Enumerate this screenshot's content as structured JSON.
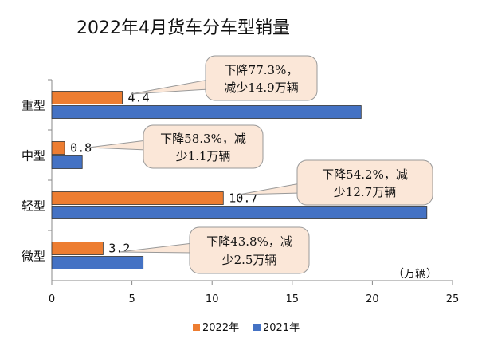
{
  "chart_data": {
    "type": "bar",
    "orientation": "horizontal",
    "title": "2022年4月货车分车型销量",
    "unit_label": "（万辆）",
    "categories": [
      "重型",
      "中型",
      "轻型",
      "微型"
    ],
    "series": [
      {
        "name": "2022年",
        "values": [
          4.4,
          0.8,
          10.7,
          3.2
        ],
        "color": "#ED7D31"
      },
      {
        "name": "2021年",
        "values": [
          19.3,
          1.9,
          23.4,
          5.7
        ],
        "color": "#4472C4"
      }
    ],
    "data_labels": [
      "4.4",
      "0.8",
      "10.7",
      "3.2"
    ],
    "xlim": [
      0,
      25
    ],
    "x_ticks": [
      "0",
      "5",
      "10",
      "15",
      "20",
      "25"
    ],
    "legend_position": "bottom",
    "annotations": [
      {
        "lines": [
          "下降77.3%，",
          "减少14.9万辆"
        ]
      },
      {
        "lines": [
          "下降58.3%，减",
          "少1.1万辆"
        ]
      },
      {
        "lines": [
          "下降54.2%，减",
          "少12.7万辆"
        ]
      },
      {
        "lines": [
          "下降43.8%，减",
          "少2.5万辆"
        ]
      }
    ]
  }
}
